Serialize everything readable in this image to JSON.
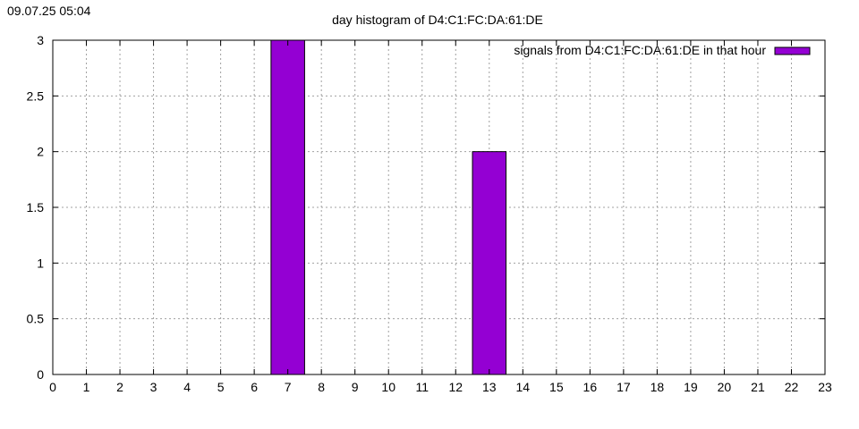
{
  "timestamp": "09.07.25 05:04",
  "chart_data": {
    "type": "bar",
    "title": "day histogram of D4:C1:FC:DA:61:DE",
    "xlabel": "",
    "ylabel": "",
    "xlim": [
      0,
      23
    ],
    "ylim": [
      0,
      3
    ],
    "grid": true,
    "legend_position": "top-right",
    "x_ticks": [
      "0",
      "1",
      "2",
      "3",
      "4",
      "5",
      "6",
      "7",
      "8",
      "9",
      "10",
      "11",
      "12",
      "13",
      "14",
      "15",
      "16",
      "17",
      "18",
      "19",
      "20",
      "21",
      "22",
      "23"
    ],
    "y_ticks": [
      "0",
      "0.5",
      "1",
      "1.5",
      "2",
      "2.5",
      "3"
    ],
    "series": [
      {
        "name": "signals from D4:C1:FC:DA:61:DE in that hour",
        "color": "#9400d3",
        "points": [
          {
            "x": 7,
            "y": 3
          },
          {
            "x": 13,
            "y": 2
          }
        ]
      }
    ]
  }
}
